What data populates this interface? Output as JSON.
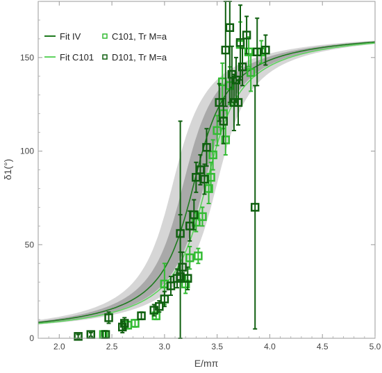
{
  "chart_data": {
    "type": "scatter",
    "xlabel": "E/mπ",
    "ylabel": "δ1(°)",
    "xlim": [
      1.8,
      5.0
    ],
    "ylim": [
      0,
      180
    ],
    "xticks": [
      "2.0",
      "2.5",
      "3.0",
      "3.5",
      "4.0",
      "4.5",
      "5.0"
    ],
    "yticks": [
      "0",
      "50",
      "100",
      "150"
    ],
    "legend": [
      {
        "label": "Fit IV",
        "kind": "line",
        "color": "#1e7a1e"
      },
      {
        "label": "Fit C101",
        "kind": "line",
        "color": "#5fd35f"
      },
      {
        "label": "C101, Tr M=a",
        "kind": "marker",
        "color": "#33bb33"
      },
      {
        "label": "D101, Tr M=a",
        "kind": "marker",
        "color": "#0f5f0f"
      }
    ],
    "curves": [
      {
        "name": "Fit IV",
        "mass": 3.28,
        "width": 0.24,
        "band_inner": [
          3.18,
          3.38
        ],
        "band_outer": [
          3.08,
          3.5
        ],
        "color": "#1e7a1e"
      },
      {
        "name": "Fit C101",
        "mass": 3.4,
        "width": 0.24,
        "color": "#5fd35f"
      }
    ],
    "series": [
      {
        "name": "C101, Tr M=a",
        "color": "#33bb33",
        "points": [
          {
            "x": 2.42,
            "y": 2,
            "err": 2
          },
          {
            "x": 2.65,
            "y": 7,
            "err": 2
          },
          {
            "x": 2.72,
            "y": 8,
            "err": 2
          },
          {
            "x": 2.92,
            "y": 12,
            "err": 2
          },
          {
            "x": 3.0,
            "y": 29,
            "err": 11
          },
          {
            "x": 3.2,
            "y": 29,
            "err": 5
          },
          {
            "x": 3.24,
            "y": 43,
            "err": 6
          },
          {
            "x": 3.32,
            "y": 44,
            "err": 4
          },
          {
            "x": 3.3,
            "y": 62,
            "err": 5
          },
          {
            "x": 3.36,
            "y": 65,
            "err": 5
          },
          {
            "x": 3.42,
            "y": 80,
            "err": 8
          },
          {
            "x": 3.44,
            "y": 86,
            "err": 8
          },
          {
            "x": 3.46,
            "y": 98,
            "err": 8
          },
          {
            "x": 3.5,
            "y": 111,
            "err": 8
          },
          {
            "x": 3.58,
            "y": 106,
            "err": 8
          },
          {
            "x": 3.56,
            "y": 120,
            "err": 8
          },
          {
            "x": 3.55,
            "y": 137,
            "err": 10
          },
          {
            "x": 3.62,
            "y": 135,
            "err": 10
          },
          {
            "x": 3.72,
            "y": 157,
            "err": 12
          },
          {
            "x": 3.8,
            "y": 153,
            "err": 8
          },
          {
            "x": 3.82,
            "y": 142,
            "err": 10
          },
          {
            "x": 3.92,
            "y": 153,
            "err": 6
          }
        ]
      },
      {
        "name": "D101, Tr M=a",
        "color": "#0f5f0f",
        "points": [
          {
            "x": 2.18,
            "y": 1,
            "err": 1
          },
          {
            "x": 2.3,
            "y": 2,
            "err": 1
          },
          {
            "x": 2.44,
            "y": 2,
            "err": 2
          },
          {
            "x": 2.47,
            "y": 11,
            "err": 3
          },
          {
            "x": 2.6,
            "y": 6,
            "err": 3
          },
          {
            "x": 2.62,
            "y": 8,
            "err": 3
          },
          {
            "x": 2.78,
            "y": 12,
            "err": 2
          },
          {
            "x": 2.9,
            "y": 15,
            "err": 3
          },
          {
            "x": 2.95,
            "y": 17,
            "err": 3
          },
          {
            "x": 3.0,
            "y": 21,
            "err": 4
          },
          {
            "x": 3.06,
            "y": 28,
            "err": 5
          },
          {
            "x": 3.12,
            "y": 32,
            "err": 5
          },
          {
            "x": 3.15,
            "y": 33,
            "err": 83
          },
          {
            "x": 3.17,
            "y": 38,
            "err": 8
          },
          {
            "x": 3.15,
            "y": 56,
            "err": 10
          },
          {
            "x": 3.22,
            "y": 32,
            "err": 6
          },
          {
            "x": 3.24,
            "y": 60,
            "err": 8
          },
          {
            "x": 3.28,
            "y": 66,
            "err": 8
          },
          {
            "x": 3.3,
            "y": 86,
            "err": 8
          },
          {
            "x": 3.34,
            "y": 90,
            "err": 8
          },
          {
            "x": 3.38,
            "y": 85,
            "err": 8
          },
          {
            "x": 3.4,
            "y": 102,
            "err": 10
          },
          {
            "x": 3.52,
            "y": 126,
            "err": 10
          },
          {
            "x": 3.56,
            "y": 116,
            "err": 12
          },
          {
            "x": 3.58,
            "y": 154,
            "err": 30
          },
          {
            "x": 3.62,
            "y": 166,
            "err": 40
          },
          {
            "x": 3.64,
            "y": 141,
            "err": 15
          },
          {
            "x": 3.66,
            "y": 126,
            "err": 15
          },
          {
            "x": 3.68,
            "y": 138,
            "err": 12
          },
          {
            "x": 3.7,
            "y": 126,
            "err": 12
          },
          {
            "x": 3.72,
            "y": 158,
            "err": 20
          },
          {
            "x": 3.74,
            "y": 145,
            "err": 10
          },
          {
            "x": 3.78,
            "y": 162,
            "err": 10
          },
          {
            "x": 3.86,
            "y": 70,
            "err": 65
          },
          {
            "x": 3.88,
            "y": 153,
            "err": 18
          },
          {
            "x": 3.96,
            "y": 154,
            "err": 8
          }
        ]
      }
    ]
  }
}
